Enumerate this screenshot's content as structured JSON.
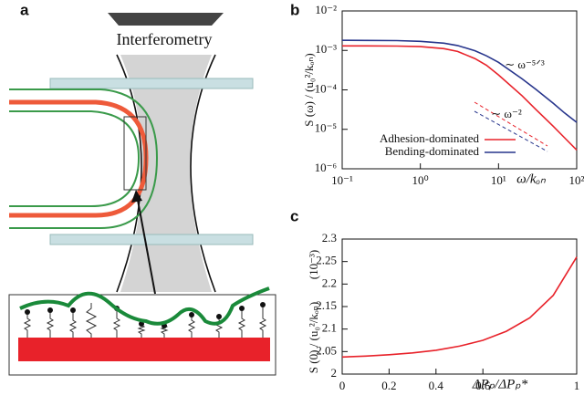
{
  "panels": {
    "a": "a",
    "b": "b",
    "c": "c"
  },
  "diagram": {
    "beam_label": "Interferometry"
  },
  "chart_data": [
    {
      "type": "line",
      "log_x": true,
      "log_y": true,
      "x_label": "ω/kₒₙ",
      "y_label": "S (ω) / (u₀²/kₒₙ)",
      "annotations": [
        "∼ ω⁻⁵ᐟ³",
        "∼ ω⁻²"
      ],
      "x": [
        0.1,
        0.2,
        0.5,
        1,
        2,
        3,
        5,
        7,
        10,
        20,
        30,
        50,
        70,
        100
      ],
      "series": [
        {
          "name": "Adhesion-dominated",
          "color": "#e8222a",
          "values": [
            0.0013,
            0.0013,
            0.00129,
            0.00125,
            0.00111,
            0.00094,
            0.00062,
            0.00042,
            0.00024,
            7.1e-05,
            3.2e-05,
            1.2e-05,
            6.1e-06,
            3e-06
          ]
        },
        {
          "name": "Bending-dominated",
          "color": "#27358c",
          "values": [
            0.0018,
            0.00179,
            0.00177,
            0.0017,
            0.00153,
            0.00133,
            0.00098,
            0.00073,
            0.0005,
            0.00019,
            0.000103,
            4.6e-05,
            2.6e-05,
            1.5e-05
          ]
        }
      ],
      "xlim": [
        0.1,
        100
      ],
      "ylim": [
        1e-06,
        0.01
      ],
      "xticks": [
        {
          "value": 0.1,
          "label": "10⁻¹"
        },
        {
          "value": 1,
          "label": "10⁰"
        },
        {
          "value": 10,
          "label": "10¹"
        },
        {
          "value": 100,
          "label": "10²"
        }
      ],
      "yticks": [
        {
          "value": 1e-06,
          "label": "10⁻⁶"
        },
        {
          "value": 1e-05,
          "label": "10⁻⁵"
        },
        {
          "value": 0.0001,
          "label": "10⁻⁴"
        },
        {
          "value": 0.001,
          "label": "10⁻³"
        },
        {
          "value": 0.01,
          "label": "10⁻²"
        }
      ],
      "legend": "lower left"
    },
    {
      "type": "line",
      "x_label": "ΔPₚ/ΔPₚ*",
      "y_label": "S (0) / (u₀²/kₒₙ)",
      "y_unit": "(10⁻³)",
      "x": [
        0,
        0.1,
        0.2,
        0.3,
        0.4,
        0.5,
        0.6,
        0.7,
        0.8,
        0.9,
        1
      ],
      "series": [
        {
          "name": null,
          "color": "#e8222a",
          "values": [
            2.038,
            2.04,
            2.043,
            2.047,
            2.053,
            2.062,
            2.075,
            2.095,
            2.125,
            2.175,
            2.26
          ]
        }
      ],
      "xlim": [
        0,
        1
      ],
      "ylim": [
        2,
        2.3
      ],
      "xticks": [
        0,
        0.2,
        0.4,
        0.6,
        1
      ],
      "yticks": [
        2,
        2.05,
        2.1,
        2.15,
        2.2,
        2.25,
        2.3
      ]
    }
  ]
}
